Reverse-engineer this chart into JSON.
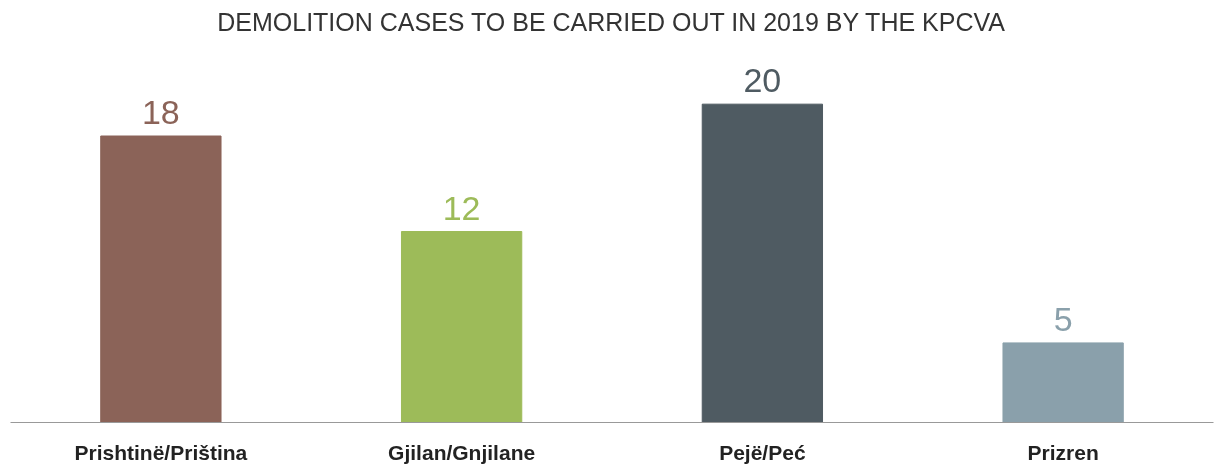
{
  "chart_data": {
    "type": "bar",
    "title": "DEMOLITION CASES TO BE CARRIED OUT IN 2019 BY THE KPCVA",
    "categories": [
      "Prishtinë/Priština",
      "Gjilan/Gnjilane",
      "Pejë/Peć",
      "Prizren"
    ],
    "values": [
      18,
      12,
      20,
      5
    ],
    "colors": [
      "#8b6358",
      "#9dbb59",
      "#4f5b62",
      "#8aa0ab"
    ],
    "data_labels": true
  }
}
